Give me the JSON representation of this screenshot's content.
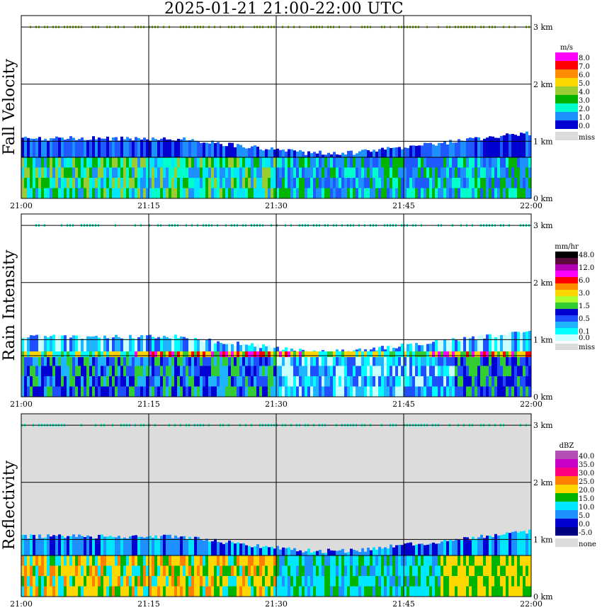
{
  "title": "2025-01-21   21:00-22:00 UTC",
  "chart_data": [
    {
      "type": "heatmap",
      "name": "Fall Velocity",
      "ylabel": "Fall Velocity",
      "x_ticks": [
        "21:00",
        "21:15",
        "21:30",
        "21:45",
        "22:00"
      ],
      "y_ticks": [
        "0 km",
        "1 km",
        "2 km",
        "3 km"
      ],
      "ylim": [
        0,
        3.2
      ],
      "unit": "m/s",
      "legend": [
        {
          "label": "8.0",
          "color": "#ff00ff"
        },
        {
          "label": "7.0",
          "color": "#ff0000"
        },
        {
          "label": "6.0",
          "color": "#ff8c00"
        },
        {
          "label": "5.0",
          "color": "#ffd700"
        },
        {
          "label": "4.0",
          "color": "#9acd32"
        },
        {
          "label": "3.0",
          "color": "#00b400"
        },
        {
          "label": "2.0",
          "color": "#00ffcc"
        },
        {
          "label": "1.0",
          "color": "#1e90ff"
        },
        {
          "label": "0.0",
          "color": "#0000d0"
        },
        {
          "label": "miss",
          "color": "#dcdcdc"
        }
      ]
    },
    {
      "type": "heatmap",
      "name": "Rain Intensity",
      "ylabel": "Rain Intensity",
      "x_ticks": [
        "21:00",
        "21:15",
        "21:30",
        "21:45",
        "22:00"
      ],
      "y_ticks": [
        "0 km",
        "1 km",
        "2 km",
        "3 km"
      ],
      "ylim": [
        0,
        3.2
      ],
      "unit": "mm/hr",
      "legend": [
        {
          "label": "48.0",
          "color": "#000000"
        },
        {
          "label": "",
          "color": "#5a0a3c"
        },
        {
          "label": "12.0",
          "color": "#b400b4"
        },
        {
          "label": "",
          "color": "#ff00ff"
        },
        {
          "label": "6.0",
          "color": "#ff0000"
        },
        {
          "label": "",
          "color": "#ff8c00"
        },
        {
          "label": "3.0",
          "color": "#ffd700"
        },
        {
          "label": "",
          "color": "#adff2f"
        },
        {
          "label": "1.5",
          "color": "#32cd32"
        },
        {
          "label": "",
          "color": "#0000d0"
        },
        {
          "label": "0.5",
          "color": "#1e50ff"
        },
        {
          "label": "",
          "color": "#1eb4ff"
        },
        {
          "label": "0.1",
          "color": "#00ffff"
        },
        {
          "label": "0.0",
          "color": "#c8ffff"
        },
        {
          "label": "miss",
          "color": "#dcdcdc"
        }
      ]
    },
    {
      "type": "heatmap",
      "name": "Reflectivity",
      "ylabel": "Reflectivity",
      "x_ticks": [
        "21:00",
        "21:15",
        "21:30",
        "21:45",
        "22:00"
      ],
      "y_ticks": [
        "0 km",
        "1 km",
        "2 km",
        "3 km"
      ],
      "ylim": [
        0,
        3.2
      ],
      "unit": "dBZ",
      "legend": [
        {
          "label": "40.0",
          "color": "#b450b4"
        },
        {
          "label": "35.0",
          "color": "#c800c8"
        },
        {
          "label": "30.0",
          "color": "#ff0080"
        },
        {
          "label": "25.0",
          "color": "#ff8000"
        },
        {
          "label": "20.0",
          "color": "#ffd700"
        },
        {
          "label": "15.0",
          "color": "#00b400"
        },
        {
          "label": "10.0",
          "color": "#00e6ff"
        },
        {
          "label": "5.0",
          "color": "#1e90ff"
        },
        {
          "label": "0.0",
          "color": "#0000d0"
        },
        {
          "label": "-5.0",
          "color": "#000080"
        },
        {
          "label": "none",
          "color": "#dcdcdc"
        }
      ]
    }
  ]
}
